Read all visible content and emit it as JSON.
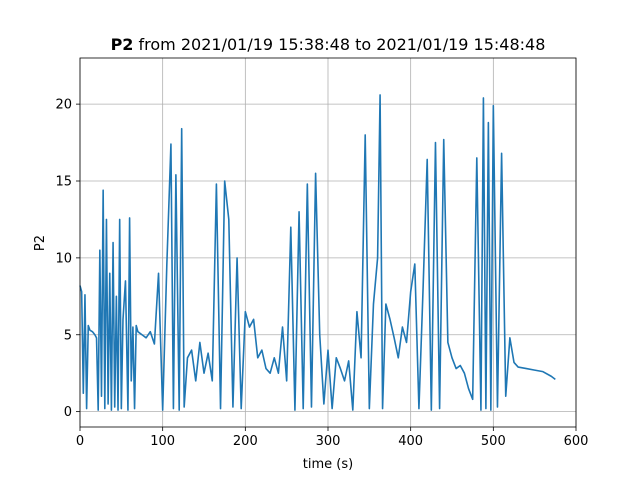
{
  "chart_data": {
    "type": "line",
    "title_bold": "P2",
    "title_rest": " from 2021/01/19 15:38:48 to 2021/01/19 15:48:48",
    "xlabel": "time (s)",
    "ylabel": "P2",
    "xlim": [
      0,
      600
    ],
    "ylim": [
      -1,
      23
    ],
    "xticks": [
      0,
      100,
      200,
      300,
      400,
      500,
      600
    ],
    "yticks": [
      0,
      5,
      10,
      15,
      20
    ],
    "xtick_labels": [
      "0",
      "100",
      "200",
      "300",
      "400",
      "500",
      "600"
    ],
    "ytick_labels": [
      "0",
      "5",
      "10",
      "15",
      "20"
    ],
    "grid": true,
    "legend": "none",
    "series": [
      {
        "color": "#1f77b4",
        "x": [
          0,
          2,
          4,
          6,
          8,
          10,
          12,
          15,
          18,
          20,
          22,
          24,
          26,
          28,
          30,
          32,
          34,
          36,
          38,
          40,
          42,
          44,
          46,
          48,
          50,
          52,
          55,
          58,
          60,
          62,
          64,
          66,
          68,
          70,
          75,
          80,
          85,
          90,
          95,
          100,
          105,
          110,
          113,
          116,
          120,
          123,
          126,
          130,
          135,
          140,
          145,
          150,
          155,
          160,
          165,
          170,
          175,
          180,
          185,
          190,
          195,
          200,
          205,
          210,
          215,
          220,
          225,
          230,
          235,
          240,
          245,
          250,
          255,
          260,
          265,
          270,
          275,
          280,
          285,
          290,
          295,
          300,
          305,
          310,
          315,
          320,
          325,
          330,
          335,
          340,
          345,
          350,
          355,
          360,
          363,
          366,
          370,
          375,
          380,
          385,
          390,
          395,
          400,
          405,
          410,
          415,
          420,
          425,
          430,
          435,
          440,
          445,
          450,
          455,
          460,
          465,
          470,
          475,
          480,
          485,
          488,
          491,
          494,
          497,
          500,
          505,
          510,
          515,
          520,
          525,
          530,
          540,
          550,
          560,
          570,
          575
        ],
        "values": [
          8.2,
          7.8,
          1.2,
          7.6,
          0.2,
          5.6,
          5.3,
          5.2,
          5.0,
          4.8,
          0.1,
          10.5,
          1.0,
          14.4,
          0.2,
          12.5,
          0.5,
          9.0,
          0.1,
          11.0,
          0.3,
          7.5,
          0.1,
          12.5,
          0.2,
          6.0,
          8.5,
          0.1,
          12.6,
          2.0,
          5.5,
          0.2,
          5.6,
          5.2,
          5.0,
          4.8,
          5.2,
          4.4,
          9.0,
          0.1,
          9.5,
          17.4,
          0.2,
          15.4,
          0.1,
          18.4,
          0.3,
          3.5,
          4.0,
          2.0,
          4.5,
          2.5,
          3.8,
          2.0,
          14.8,
          0.2,
          15.0,
          12.5,
          0.3,
          10.0,
          0.2,
          6.5,
          5.5,
          6.0,
          3.5,
          4.0,
          2.8,
          2.5,
          3.5,
          2.5,
          5.5,
          2.0,
          12.0,
          0.1,
          13.0,
          0.2,
          14.8,
          0.3,
          15.5,
          5.0,
          0.5,
          4.0,
          0.2,
          3.5,
          2.8,
          2.0,
          3.3,
          0.1,
          6.5,
          3.5,
          18.0,
          0.2,
          7.0,
          10.0,
          20.6,
          0.2,
          7.0,
          6.0,
          4.8,
          3.5,
          5.5,
          4.5,
          7.8,
          9.6,
          0.2,
          8.0,
          16.4,
          0.1,
          17.5,
          0.2,
          17.7,
          4.5,
          3.5,
          2.8,
          3.0,
          2.5,
          1.5,
          0.8,
          16.5,
          0.1,
          20.4,
          0.2,
          18.8,
          0.1,
          19.9,
          0.3,
          16.8,
          1.0,
          4.8,
          3.2,
          2.9,
          2.8,
          2.7,
          2.6,
          2.3,
          2.1
        ]
      }
    ]
  }
}
